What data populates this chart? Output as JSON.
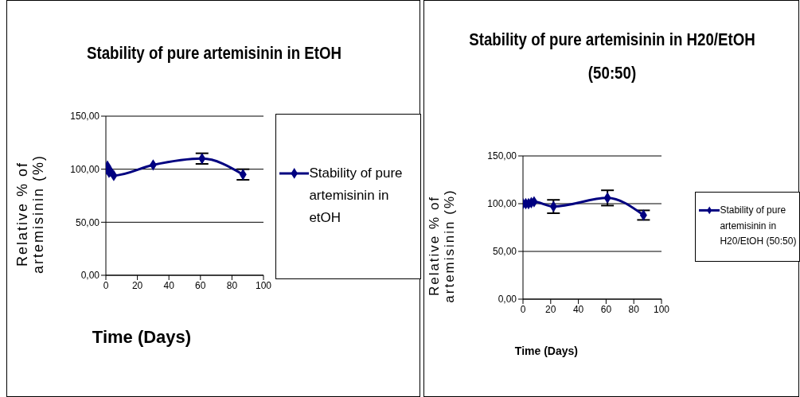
{
  "chart_data": [
    {
      "type": "line",
      "title": "Stability of pure artemisinin in EtOH",
      "xlabel": "Time (Days)",
      "ylabel": "Relative % of artemisinin (%)",
      "x": [
        0,
        1,
        2,
        3,
        5,
        30,
        61,
        87
      ],
      "series": [
        {
          "name": "Stability of pure artemisinin in etOH",
          "color": "#000080",
          "values": [
            100,
            103,
            97,
            98,
            94,
            104,
            110,
            95
          ],
          "errors": [
            null,
            null,
            null,
            null,
            null,
            null,
            5,
            5
          ]
        }
      ],
      "xlim": [
        0,
        100
      ],
      "xticks": [
        0,
        20,
        40,
        60,
        80,
        100
      ],
      "ylim": [
        0,
        150
      ],
      "yticks": [
        {
          "value": 0,
          "label": "0,00"
        },
        {
          "value": 50,
          "label": "50,00"
        },
        {
          "value": 100,
          "label": "100,00"
        },
        {
          "value": 150,
          "label": "150,00"
        }
      ],
      "grid": "y",
      "legend": "right",
      "marker": "diamond",
      "line_style": "solid"
    },
    {
      "type": "line",
      "title": "Stability of pure artemisinin in H20/EtOH (50:50)",
      "xlabel": "Time (Days)",
      "ylabel": "Relative % of artemisinin (%)",
      "x": [
        0,
        2,
        4,
        6,
        8,
        22,
        61,
        87
      ],
      "series": [
        {
          "name": "Stability of pure artemisinin in H20/EtOH (50:50)",
          "color": "#000080",
          "values": [
            100,
            100,
            100,
            101,
            102,
            97,
            106,
            88
          ],
          "errors": [
            null,
            null,
            null,
            null,
            null,
            7,
            8,
            5
          ]
        }
      ],
      "xlim": [
        0,
        100
      ],
      "xticks": [
        0,
        20,
        40,
        60,
        80,
        100
      ],
      "ylim": [
        0,
        150
      ],
      "yticks": [
        {
          "value": 0,
          "label": "0,00"
        },
        {
          "value": 50,
          "label": "50,00"
        },
        {
          "value": 100,
          "label": "100,00"
        },
        {
          "value": 150,
          "label": "150,00"
        }
      ],
      "grid": "y",
      "legend": "right",
      "marker": "diamond",
      "line_style": "solid"
    }
  ]
}
